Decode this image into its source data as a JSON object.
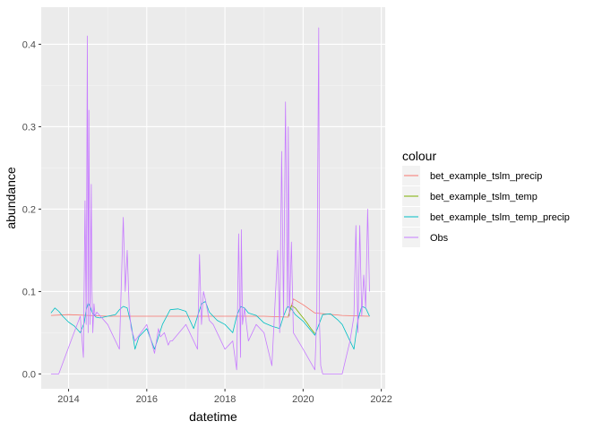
{
  "chart_data": {
    "type": "line",
    "xlabel": "datetime",
    "ylabel": "abundance",
    "xlim": [
      2013.3,
      2022.1
    ],
    "ylim": [
      -0.018,
      0.445
    ],
    "x_ticks": [
      2014,
      2016,
      2018,
      2020,
      2022
    ],
    "y_ticks": [
      0.0,
      0.1,
      0.2,
      0.3,
      0.4
    ],
    "y_tick_labels": [
      "0.0",
      "0.1",
      "0.2",
      "0.3",
      "0.4"
    ],
    "grid": true,
    "legend": {
      "title": "colour",
      "position": "right"
    },
    "series": [
      {
        "name": "bet_example_tslm_precip",
        "color": "#F8766D",
        "x": [
          2013.55,
          2014.0,
          2014.5,
          2015.0,
          2016.0,
          2017.0,
          2018.0,
          2019.0,
          2019.62,
          2019.75,
          2020.0,
          2020.3,
          2021.0,
          2021.7
        ],
        "y": [
          0.071,
          0.072,
          0.071,
          0.07,
          0.07,
          0.07,
          0.07,
          0.07,
          0.069,
          0.091,
          0.084,
          0.074,
          0.071,
          0.07
        ]
      },
      {
        "name": "bet_example_tslm_temp",
        "color": "#7CAE00",
        "x": [
          2019.62,
          2019.7,
          2019.8,
          2019.9,
          2020.0,
          2020.1,
          2020.2,
          2020.3
        ],
        "y": [
          0.07,
          0.083,
          0.08,
          0.074,
          0.068,
          0.062,
          0.055,
          0.049
        ]
      },
      {
        "name": "bet_example_tslm_temp_precip",
        "color": "#00BFC4",
        "x": [
          2013.55,
          2013.65,
          2013.75,
          2013.85,
          2014.0,
          2014.15,
          2014.3,
          2014.4,
          2014.45,
          2014.5,
          2014.55,
          2014.6,
          2014.7,
          2014.8,
          2015.0,
          2015.2,
          2015.3,
          2015.4,
          2015.5,
          2015.6,
          2015.7,
          2015.8,
          2016.0,
          2016.2,
          2016.4,
          2016.6,
          2016.8,
          2017.0,
          2017.2,
          2017.3,
          2017.4,
          2017.5,
          2017.6,
          2017.8,
          2018.0,
          2018.2,
          2018.3,
          2018.4,
          2018.5,
          2018.6,
          2018.8,
          2019.0,
          2019.2,
          2019.4,
          2019.5,
          2019.6,
          2019.7,
          2019.8,
          2020.0,
          2020.3,
          2020.5,
          2020.7,
          2020.9,
          2021.0,
          2021.2,
          2021.3,
          2021.4,
          2021.5,
          2021.6,
          2021.7
        ],
        "y": [
          0.074,
          0.08,
          0.076,
          0.07,
          0.063,
          0.058,
          0.05,
          0.062,
          0.078,
          0.086,
          0.082,
          0.075,
          0.069,
          0.068,
          0.07,
          0.072,
          0.078,
          0.082,
          0.08,
          0.06,
          0.03,
          0.045,
          0.055,
          0.03,
          0.06,
          0.078,
          0.079,
          0.076,
          0.055,
          0.07,
          0.085,
          0.088,
          0.075,
          0.065,
          0.06,
          0.05,
          0.07,
          0.082,
          0.08,
          0.074,
          0.071,
          0.062,
          0.058,
          0.055,
          0.07,
          0.082,
          0.079,
          0.072,
          0.064,
          0.047,
          0.072,
          0.073,
          0.065,
          0.06,
          0.04,
          0.03,
          0.065,
          0.082,
          0.08,
          0.07
        ]
      },
      {
        "name": "Obs",
        "color": "#C77CFF",
        "x": [
          2013.55,
          2013.75,
          2014.1,
          2014.3,
          2014.38,
          2014.42,
          2014.45,
          2014.48,
          2014.5,
          2014.52,
          2014.55,
          2014.58,
          2014.6,
          2014.62,
          2014.65,
          2014.68,
          2014.72,
          2015.0,
          2015.3,
          2015.4,
          2015.45,
          2015.5,
          2015.55,
          2015.6,
          2015.7,
          2016.0,
          2016.2,
          2016.3,
          2016.35,
          2016.45,
          2016.55,
          2016.6,
          2016.65,
          2017.0,
          2017.3,
          2017.35,
          2017.4,
          2017.45,
          2017.5,
          2017.6,
          2017.7,
          2018.0,
          2018.2,
          2018.3,
          2018.35,
          2018.4,
          2018.42,
          2018.45,
          2018.5,
          2018.6,
          2018.8,
          2019.0,
          2019.2,
          2019.35,
          2019.4,
          2019.45,
          2019.5,
          2019.55,
          2019.6,
          2019.62,
          2019.65,
          2019.7,
          2019.75,
          2020.0,
          2020.3,
          2020.35,
          2020.4,
          2020.42,
          2020.45,
          2020.5,
          2020.6,
          2021.0,
          2021.2,
          2021.3,
          2021.35,
          2021.4,
          2021.45,
          2021.5,
          2021.55,
          2021.6,
          2021.65,
          2021.7
        ],
        "y": [
          0.0,
          0.0,
          0.045,
          0.07,
          0.02,
          0.21,
          0.06,
          0.41,
          0.05,
          0.32,
          0.06,
          0.23,
          0.1,
          0.05,
          0.085,
          0.07,
          0.075,
          0.06,
          0.03,
          0.19,
          0.1,
          0.15,
          0.08,
          0.055,
          0.04,
          0.06,
          0.025,
          0.055,
          0.045,
          0.05,
          0.035,
          0.04,
          0.04,
          0.06,
          0.03,
          0.145,
          0.06,
          0.1,
          0.09,
          0.065,
          0.06,
          0.03,
          0.04,
          0.005,
          0.17,
          0.02,
          0.175,
          0.06,
          0.08,
          0.04,
          0.06,
          0.05,
          0.01,
          0.15,
          0.05,
          0.27,
          0.07,
          0.33,
          0.08,
          0.3,
          0.07,
          0.16,
          0.05,
          0.03,
          0.005,
          0.07,
          0.42,
          0.06,
          0.01,
          0.0,
          0.0,
          0.0,
          0.04,
          0.07,
          0.18,
          0.05,
          0.18,
          0.07,
          0.12,
          0.08,
          0.2,
          0.1
        ]
      }
    ]
  }
}
